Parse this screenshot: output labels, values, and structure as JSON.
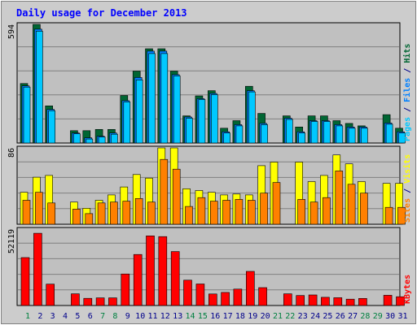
{
  "colors": {
    "background": "#cccccc",
    "plot_bg": "#c0c0c0",
    "title": "#0000ff",
    "hits": "#006633",
    "files": "#0080ff",
    "pages": "#00c8ff",
    "visits": "#ffff00",
    "sites": "#ff8000",
    "kbytes": "#ff0000",
    "weekend_day": "#008040",
    "weekday": "#00008b"
  },
  "chart_data": {
    "type": "bar",
    "title": "Daily usage for December 2013",
    "categories": [
      "1",
      "2",
      "3",
      "4",
      "5",
      "6",
      "7",
      "8",
      "9",
      "10",
      "11",
      "12",
      "13",
      "14",
      "15",
      "16",
      "17",
      "18",
      "19",
      "20",
      "21",
      "22",
      "23",
      "24",
      "25",
      "26",
      "27",
      "28",
      "29",
      "30",
      "31"
    ],
    "weekend_days": [
      "1",
      "7",
      "8",
      "14",
      "15",
      "21",
      "22",
      "28",
      "29"
    ],
    "panels": [
      {
        "name": "top",
        "max_label": "594",
        "ylim": [
          0,
          594
        ],
        "label_parts": [
          {
            "text": "Pages",
            "color": "#00c8ff"
          },
          {
            "text": " / ",
            "color": "#00008b"
          },
          {
            "text": "Files",
            "color": "#0080ff"
          },
          {
            "text": " / ",
            "color": "#00008b"
          },
          {
            "text": "Hits",
            "color": "#006633"
          }
        ],
        "series": [
          {
            "name": "Hits",
            "color": "#006633",
            "values": [
              298,
              594,
              186,
              0,
              62,
              62,
              68,
              68,
              238,
              360,
              472,
              472,
              360,
              136,
              236,
              262,
              74,
              112,
              284,
              148,
              0,
              136,
              80,
              136,
              136,
              112,
              98,
              86,
              0,
              142,
              74
            ]
          },
          {
            "name": "Files",
            "color": "#0080ff",
            "values": [
              286,
              570,
              168,
              0,
              50,
              26,
              34,
              50,
              212,
              328,
              460,
              460,
              342,
              130,
              222,
              248,
              56,
              92,
              262,
              98,
              0,
              124,
              56,
              112,
              112,
              92,
              80,
              80,
              0,
              100,
              56
            ]
          },
          {
            "name": "Pages",
            "color": "#00c8ff",
            "values": [
              280,
              560,
              162,
              0,
              46,
              20,
              30,
              44,
              206,
              316,
              448,
              448,
              336,
              124,
              218,
              242,
              50,
              86,
              256,
              92,
              0,
              118,
              50,
              108,
              108,
              86,
              74,
              74,
              0,
              94,
              50
            ]
          }
        ]
      },
      {
        "name": "middle",
        "max_label": "86",
        "ylim": [
          0,
          86
        ],
        "label_parts": [
          {
            "text": "Sites",
            "color": "#ff8000"
          },
          {
            "text": " / ",
            "color": "#00008b"
          },
          {
            "text": "Visits",
            "color": "#ffff00"
          }
        ],
        "series": [
          {
            "name": "Visits",
            "color": "#ffff00",
            "values": [
              36,
              53,
              55,
              0,
              25,
              18,
              27,
              33,
              42,
              56,
              52,
              86,
              86,
              40,
              38,
              36,
              33,
              34,
              33,
              66,
              70,
              0,
              70,
              48,
              55,
              78,
              68,
              48,
              0,
              46,
              46
            ]
          },
          {
            "name": "Sites",
            "color": "#ff8000",
            "values": [
              27,
              36,
              24,
              0,
              17,
              12,
              24,
              25,
              26,
              29,
              25,
              73,
              62,
              20,
              30,
              26,
              27,
              28,
              27,
              35,
              47,
              0,
              28,
              25,
              30,
              60,
              45,
              35,
              0,
              19,
              19
            ]
          }
        ]
      },
      {
        "name": "bottom",
        "max_label": "52119",
        "ylim": [
          0,
          52119
        ],
        "label_parts": [
          {
            "text": "KBytes",
            "color": "#ff0000"
          }
        ],
        "series": [
          {
            "name": "KBytes",
            "color": "#ff0000",
            "values": [
              32700,
              49300,
              14600,
              0,
              8000,
              4900,
              5200,
              5200,
              21500,
              34800,
              47500,
              47000,
              36800,
              17300,
              14700,
              7900,
              8900,
              11200,
              23300,
              12200,
              0,
              8000,
              6800,
              7200,
              5600,
              5300,
              4300,
              4800,
              0,
              7000,
              6000
            ]
          }
        ]
      }
    ]
  }
}
